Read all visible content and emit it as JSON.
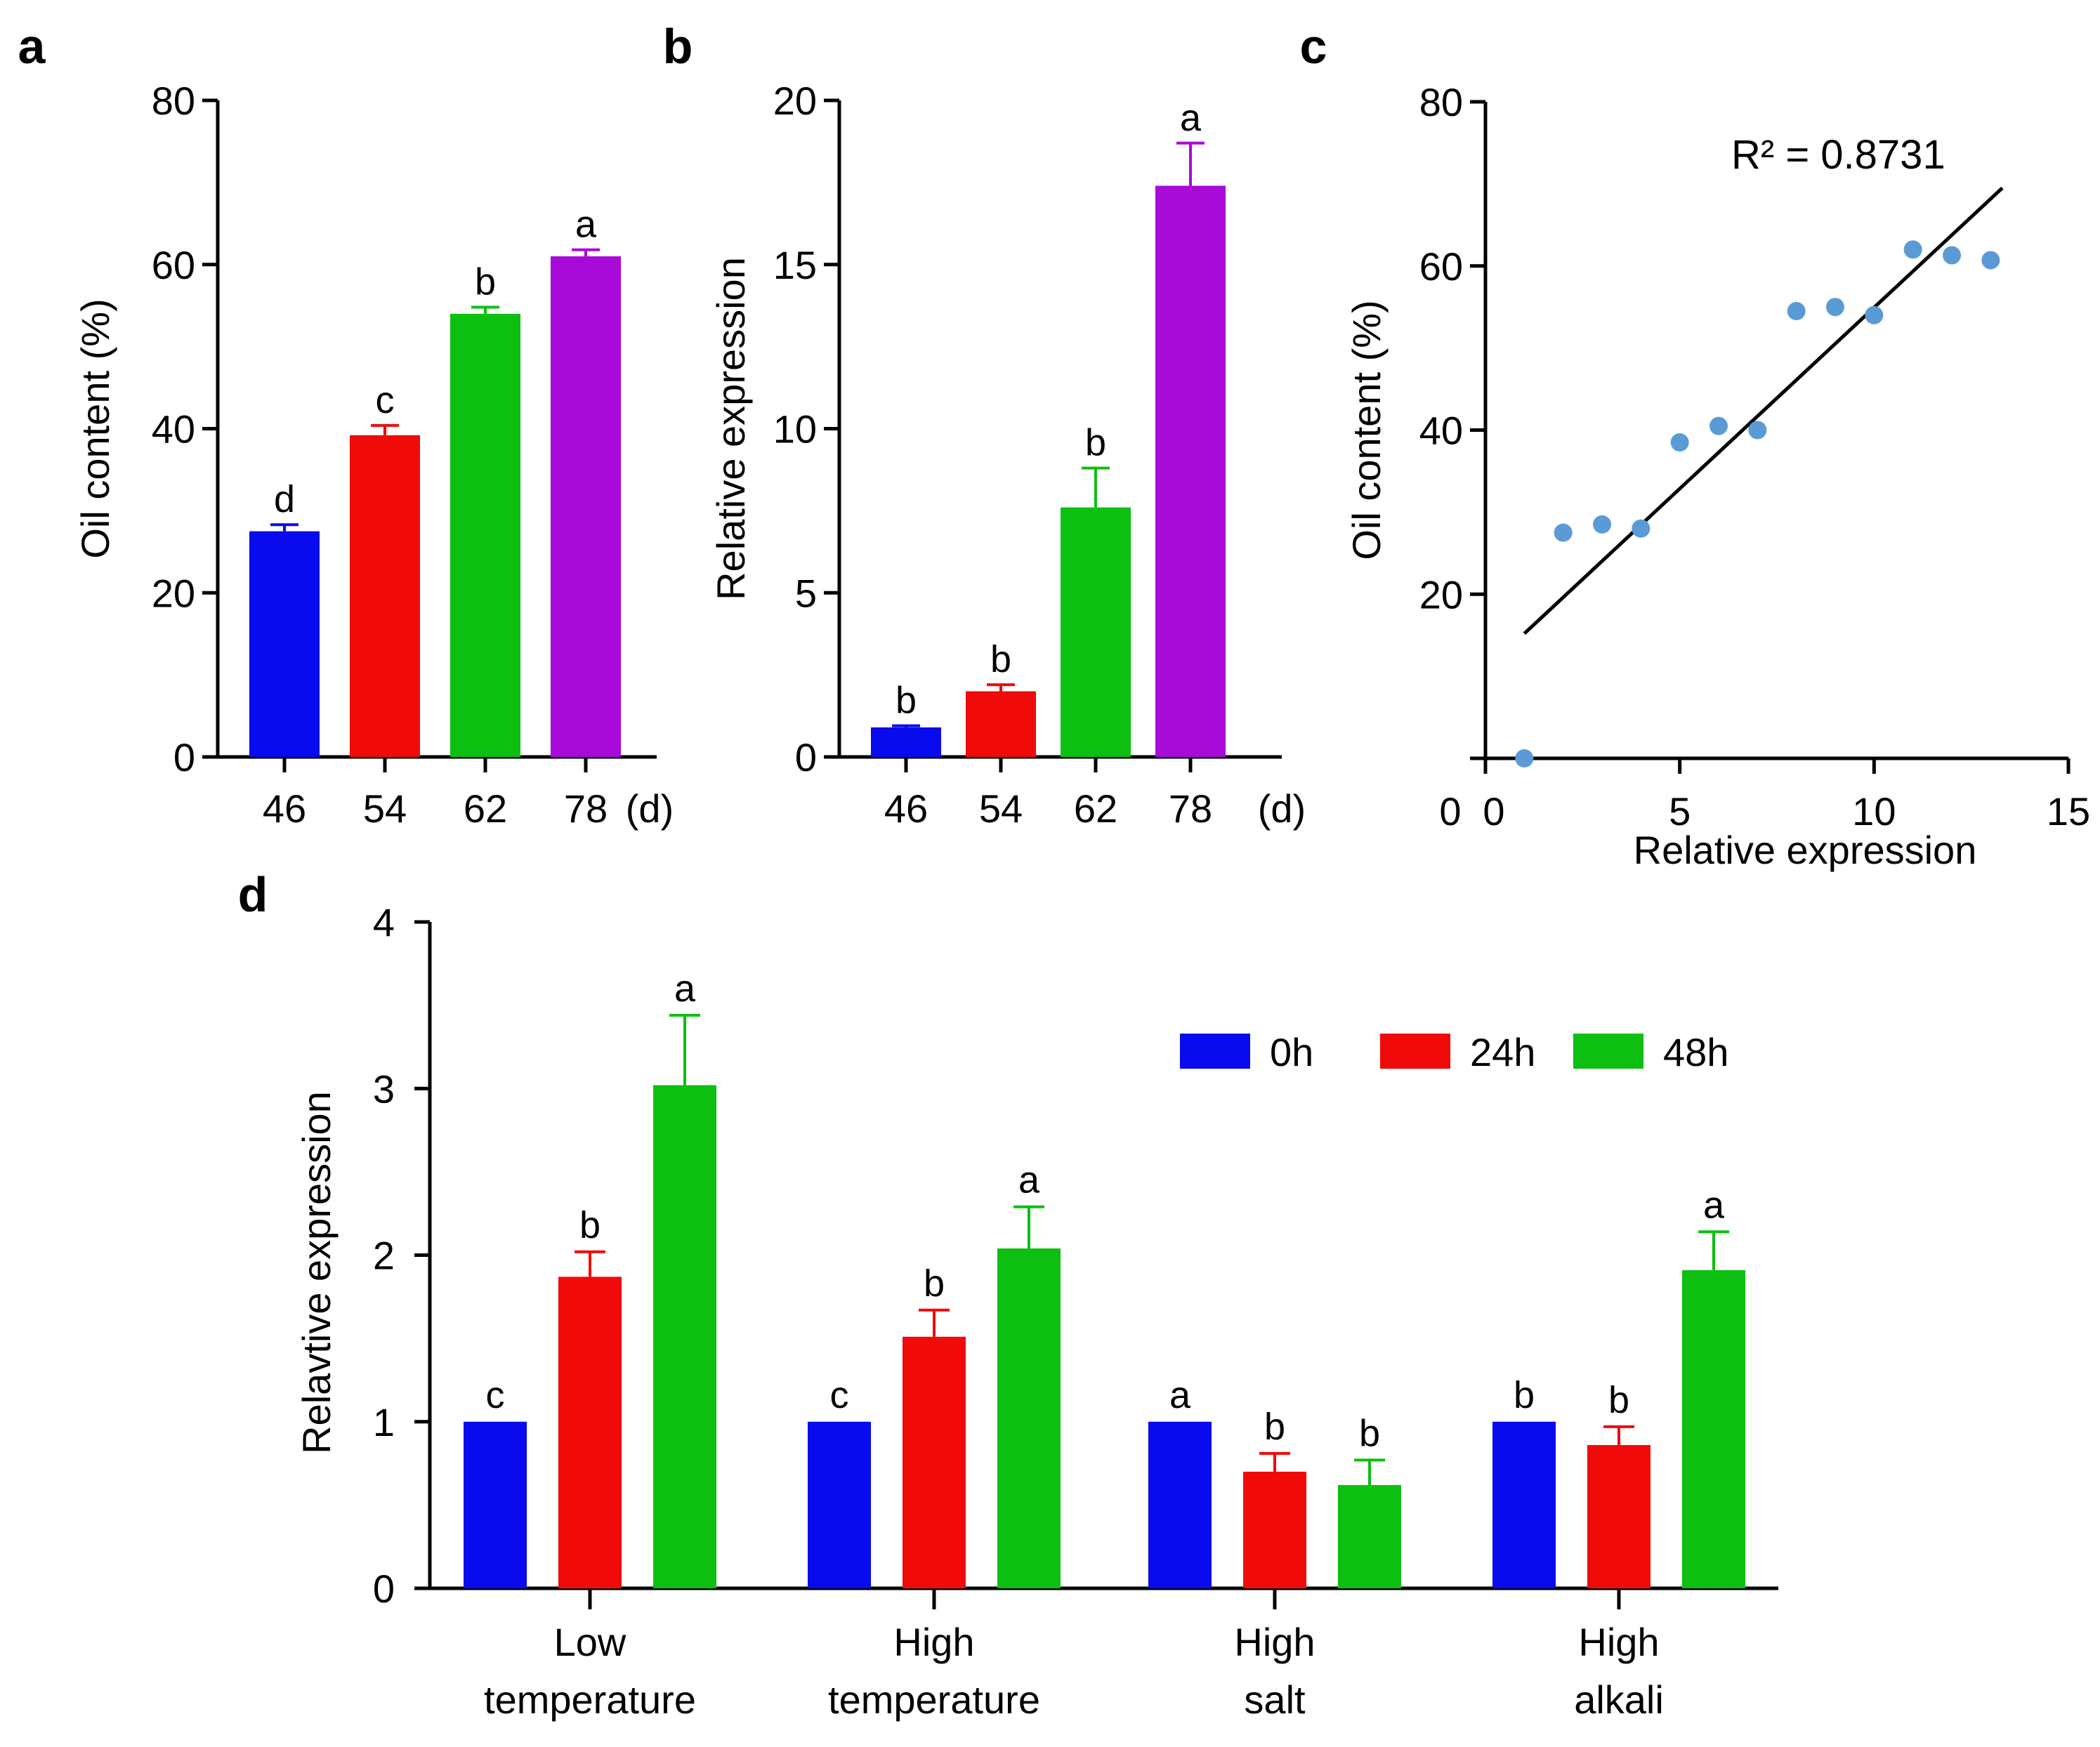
{
  "colors": {
    "blue": "#0a0aef",
    "red": "#f00a0a",
    "green": "#0cbf10",
    "purple": "#a80ad8",
    "scatter": "#5b9bd5",
    "axis": "#000000"
  },
  "chart_data": [
    {
      "panel": "a",
      "type": "bar",
      "categories": [
        "46",
        "54",
        "62",
        "78"
      ],
      "category_unit": "(d)",
      "values": [
        27.5,
        39.2,
        54.0,
        61.0
      ],
      "errors": [
        0.8,
        1.2,
        0.8,
        0.8
      ],
      "significance": [
        "d",
        "c",
        "b",
        "a"
      ],
      "bar_colors": [
        "#0a0aef",
        "#f00a0a",
        "#0cbf10",
        "#a80ad8"
      ],
      "ylabel": "Oil content (%)",
      "ylim": [
        0,
        80
      ],
      "yticks": [
        "0",
        "20",
        "40",
        "60",
        "80"
      ]
    },
    {
      "panel": "b",
      "type": "bar",
      "categories": [
        "46",
        "54",
        "62",
        "78"
      ],
      "category_unit": "(d)",
      "values": [
        0.9,
        2.0,
        7.6,
        17.4
      ],
      "errors": [
        0.05,
        0.2,
        1.2,
        1.3
      ],
      "significance": [
        "b",
        "b",
        "b",
        "a"
      ],
      "bar_colors": [
        "#0a0aef",
        "#f00a0a",
        "#0cbf10",
        "#a80ad8"
      ],
      "ylabel": "Relative expression",
      "ylim": [
        0,
        20
      ],
      "yticks": [
        "0",
        "5",
        "10",
        "15",
        "20"
      ]
    },
    {
      "panel": "c",
      "type": "scatter",
      "x": [
        1,
        2,
        3,
        4,
        5,
        6,
        7,
        8,
        9,
        10,
        11,
        12,
        13
      ],
      "y": [
        0,
        27.5,
        28.5,
        28,
        38.5,
        40.5,
        40,
        54.5,
        55,
        54,
        62,
        61.3,
        60.7
      ],
      "fit_line": {
        "x": [
          1,
          13.3
        ],
        "y": [
          15.2,
          69.5
        ]
      },
      "annotation": "R² = 0.8731",
      "xlabel": "Relative expression",
      "ylabel": "Oil content (%)",
      "xlim": [
        0,
        15
      ],
      "ylim": [
        0,
        80
      ],
      "xticks": [
        "0",
        "5",
        "10",
        "15"
      ],
      "yticks": [
        "0",
        "20",
        "40",
        "60",
        "80"
      ]
    },
    {
      "panel": "d",
      "type": "bar",
      "categories": [
        [
          "Low",
          "temperature"
        ],
        [
          "High",
          "temperature"
        ],
        [
          "High",
          "salt"
        ],
        [
          "High",
          "alkali"
        ]
      ],
      "series": [
        {
          "name": "0h",
          "color": "#0a0aef",
          "values": [
            1.0,
            1.0,
            1.0,
            1.0
          ],
          "errors": [
            0,
            0,
            0,
            0
          ],
          "significance": [
            "c",
            "c",
            "a",
            "b"
          ]
        },
        {
          "name": "24h",
          "color": "#f00a0a",
          "values": [
            1.87,
            1.51,
            0.7,
            0.86
          ],
          "errors": [
            0.15,
            0.16,
            0.11,
            0.11
          ],
          "significance": [
            "b",
            "b",
            "b",
            "b"
          ]
        },
        {
          "name": "48h",
          "color": "#0cbf10",
          "values": [
            3.02,
            2.04,
            0.62,
            1.91
          ],
          "errors": [
            0.42,
            0.25,
            0.15,
            0.23
          ],
          "significance": [
            "a",
            "a",
            "b",
            "a"
          ]
        }
      ],
      "ylabel": "Relavtive expression",
      "ylim": [
        0,
        4
      ],
      "yticks": [
        "0",
        "1",
        "2",
        "3",
        "4"
      ],
      "legend": "top-right"
    }
  ]
}
